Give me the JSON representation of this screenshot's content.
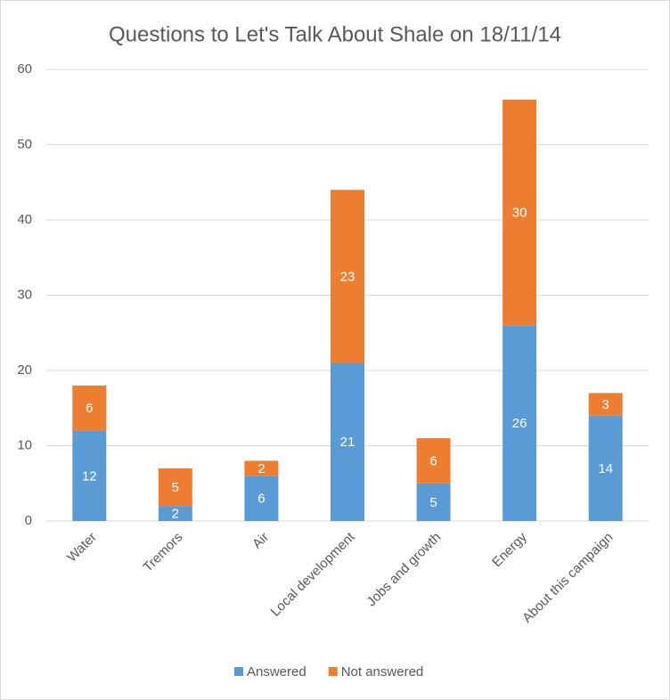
{
  "chart_data": {
    "type": "bar",
    "stacked": true,
    "title": "Questions to Let's Talk About Shale on 18/11/14",
    "categories": [
      "Water",
      "Tremors",
      "Air",
      "Local development",
      "Jobs and growth",
      "Energy",
      "About this campaign"
    ],
    "series": [
      {
        "name": "Answered",
        "color": "#5b9bd5",
        "values": [
          12,
          2,
          6,
          21,
          5,
          26,
          14
        ]
      },
      {
        "name": "Not answered",
        "color": "#ed7d31",
        "values": [
          6,
          5,
          2,
          23,
          6,
          30,
          3
        ]
      }
    ],
    "ylim": [
      0,
      60
    ],
    "yticks": [
      0,
      10,
      20,
      30,
      40,
      50,
      60
    ],
    "grid": true,
    "legend": "bottom"
  }
}
